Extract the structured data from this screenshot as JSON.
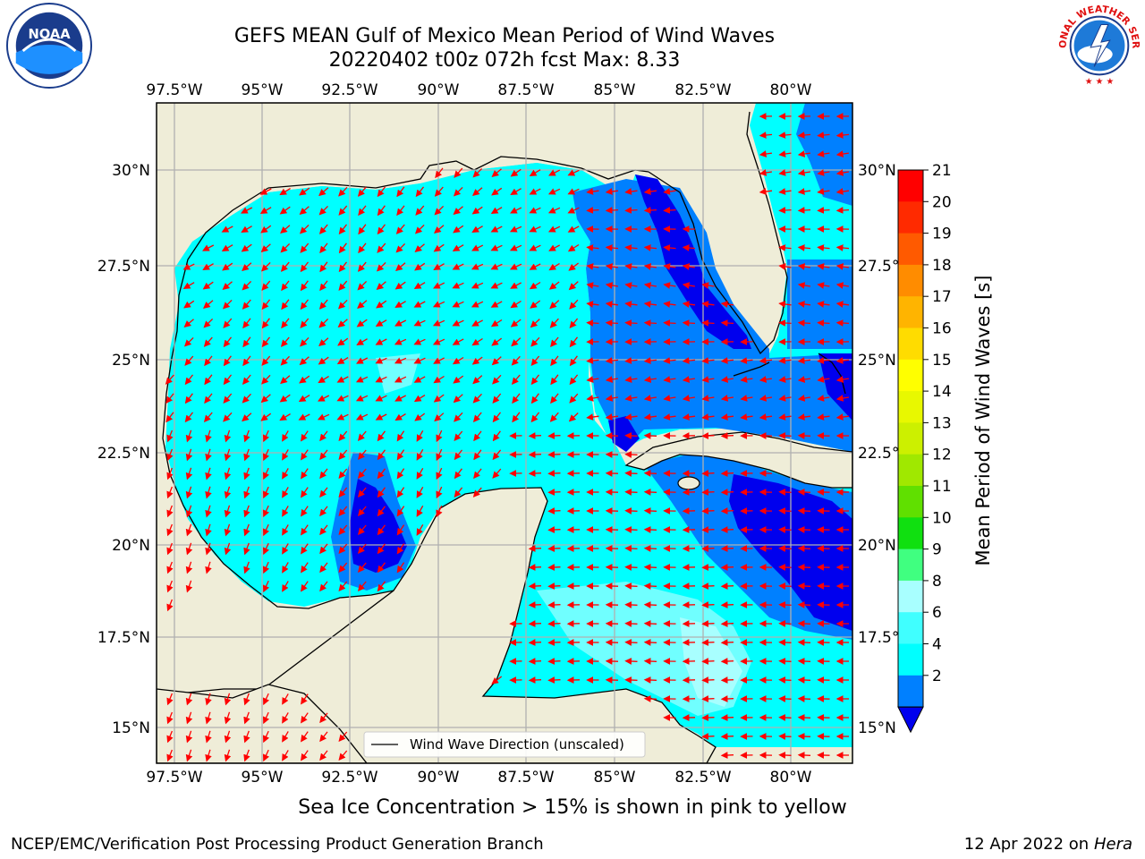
{
  "header": {
    "title_line1": "GEFS MEAN Gulf of Mexico Mean Period of Wind Waves",
    "title_line2": "20220402 t00z 072h fcst   Max: 8.33"
  },
  "logos": {
    "left": "noaa-logo",
    "right": "nws-logo",
    "nws_text": "NATIONAL WEATHER SERVICE"
  },
  "map": {
    "lon_labels": [
      "97.5°W",
      "95°W",
      "92.5°W",
      "90°W",
      "87.5°W",
      "85°W",
      "82.5°W",
      "80°W"
    ],
    "lat_labels": [
      "30°N",
      "27.5°N",
      "25°N",
      "22.5°N",
      "20°N",
      "17.5°N",
      "15°N"
    ],
    "legend_label": "Wind Wave Direction (unscaled)",
    "colors": {
      "land": "#efedd8",
      "water_2_4": "#0080ff",
      "water_0_2": "#0000ee",
      "water_4_6": "#00ffff",
      "water_6_8": "#40ffff",
      "arrow": "#ff0000",
      "grid": "#b0b0b0"
    }
  },
  "colorbar": {
    "title": "Mean Period of Wind Waves [s]",
    "ticks": [
      "21",
      "20",
      "19",
      "18",
      "17",
      "16",
      "15",
      "14",
      "13",
      "12",
      "11",
      "10",
      "9",
      "8",
      "6",
      "4",
      "2"
    ],
    "colors": [
      "#ff0000",
      "#ff2a00",
      "#ff5a00",
      "#ff8c00",
      "#ffb400",
      "#ffdc00",
      "#ffff00",
      "#e8f800",
      "#ccf000",
      "#a0e800",
      "#60e000",
      "#10e010",
      "#40ff80",
      "#a8ffff",
      "#40ffff",
      "#00ffff",
      "#0080ff"
    ],
    "extend_color": "#0000ee"
  },
  "footer": {
    "note": "Sea Ice Concentration > 15% is shown in pink to yellow",
    "left": "NCEP/EMC/Verification Post Processing Product Generation Branch",
    "right_prefix": "12 Apr 2022 on ",
    "right_host": "Hera"
  }
}
